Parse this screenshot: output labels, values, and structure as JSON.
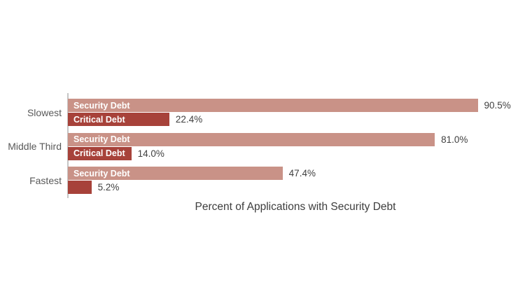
{
  "chart_data": {
    "type": "bar",
    "orientation": "horizontal",
    "title": "",
    "xlabel": "Percent of Applications with Security Debt",
    "ylabel": "",
    "xlim": [
      0,
      100
    ],
    "grid": false,
    "legend_position": "none (series names shown inside bars)",
    "categories": [
      "Slowest",
      "Middle Third",
      "Fastest"
    ],
    "series": [
      {
        "name": "Security Debt",
        "color": "#c99287",
        "values": [
          90.5,
          81.0,
          47.4
        ],
        "value_labels": [
          "90.5%",
          "81.0%",
          "47.4%"
        ],
        "name_in_bar": [
          true,
          true,
          true
        ]
      },
      {
        "name": "Critical Debt",
        "color": "#a7423a",
        "values": [
          22.4,
          14.0,
          5.2
        ],
        "value_labels": [
          "22.4%",
          "14.0%",
          "5.2%"
        ],
        "name_in_bar": [
          true,
          true,
          false
        ]
      }
    ]
  },
  "styles": {
    "background": "#ffffff",
    "bar_name_color": "#ffffff",
    "value_label_color": "#404040",
    "category_label_color": "#595959",
    "axis_line_color": "#c6c6c6",
    "xlabel_color": "#3d3d3d"
  }
}
